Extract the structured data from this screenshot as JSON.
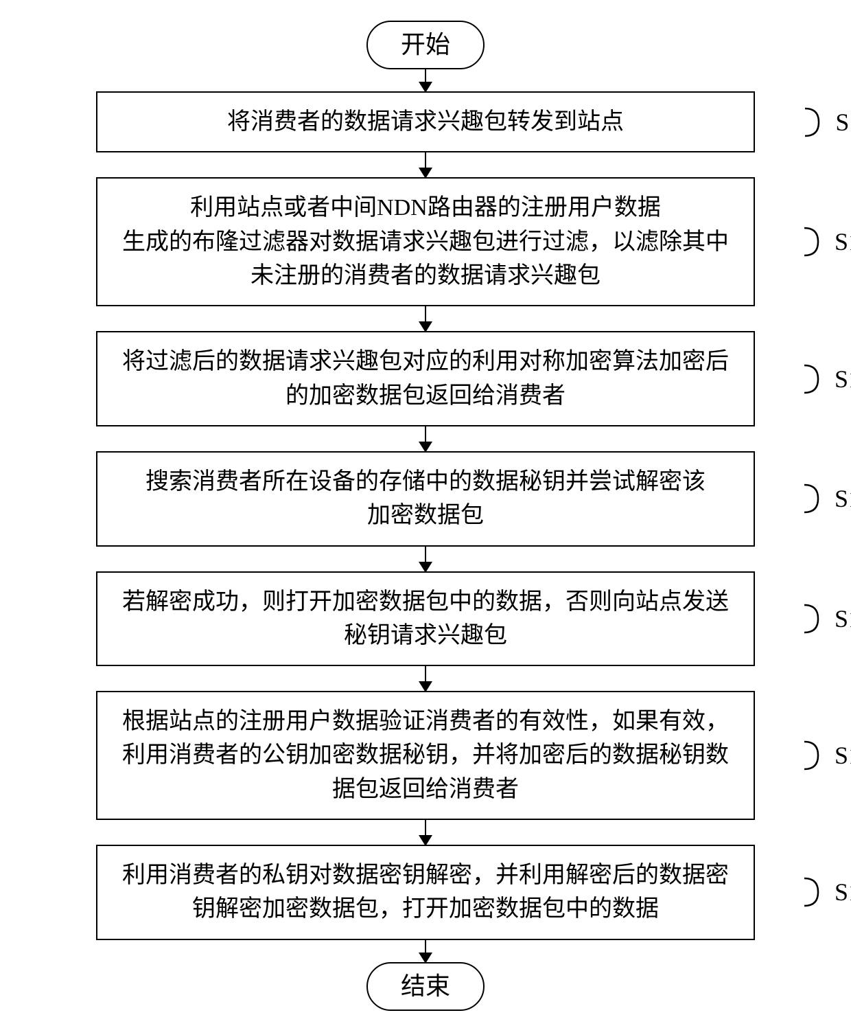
{
  "flowchart": {
    "type": "flowchart",
    "direction": "top-to-bottom",
    "background_color": "#ffffff",
    "border_color": "#000000",
    "border_width": 2.5,
    "text_color": "#000000",
    "font_family": "SimSun",
    "node_fontsize": 34,
    "terminal_fontsize": 36,
    "label_fontsize": 36,
    "label_font_family": "Times New Roman",
    "process_width": 960,
    "terminal_border_radius": 38,
    "arrow_head_size": 16,
    "terminals": {
      "start": "开始",
      "end": "结束"
    },
    "steps": [
      {
        "id": "S11",
        "text": "将消费者的数据请求兴趣包转发到站点"
      },
      {
        "id": "S12",
        "text": "利用站点或者中间NDN路由器的注册用户数据\n生成的布隆过滤器对数据请求兴趣包进行过滤，以滤除其中\n未注册的消费者的数据请求兴趣包"
      },
      {
        "id": "S13",
        "text": "将过滤后的数据请求兴趣包对应的利用对称加密算法加密后\n的加密数据包返回给消费者"
      },
      {
        "id": "S14",
        "text": "搜索消费者所在设备的存储中的数据秘钥并尝试解密该\n加密数据包"
      },
      {
        "id": "S15",
        "text": "若解密成功，则打开加密数据包中的数据，否则向站点发送\n秘钥请求兴趣包"
      },
      {
        "id": "S16",
        "text": "根据站点的注册用户数据验证消费者的有效性，如果有效，\n利用消费者的公钥加密数据秘钥，并将加密后的数据秘钥数\n据包返回给消费者"
      },
      {
        "id": "S17",
        "text": "利用消费者的私钥对数据密钥解密，并利用解密后的数据密\n钥解密加密数据包，打开加密数据包中的数据"
      }
    ]
  }
}
